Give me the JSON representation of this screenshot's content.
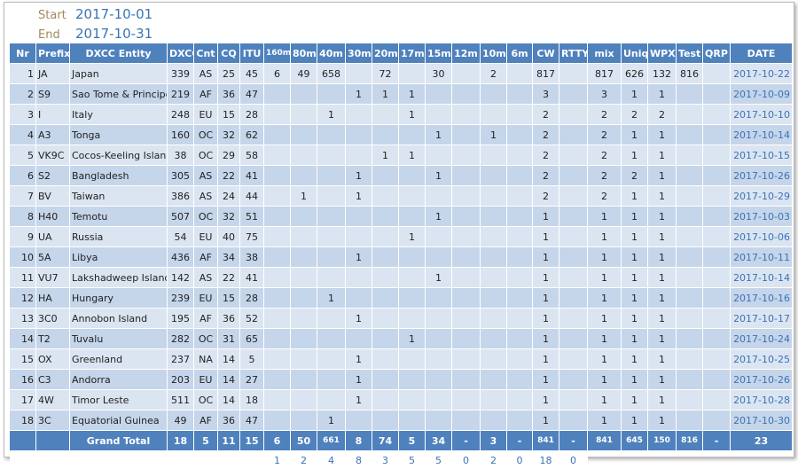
{
  "period": {
    "start_label": "Start",
    "start": "2017-10-01",
    "end_label": "End",
    "end": "2017-10-31"
  },
  "table": {
    "columns": [
      "Nr",
      "Prefix",
      "DXCC Entity",
      "DXCC",
      "Cnt",
      "CQ",
      "ITU",
      "160m",
      "80m",
      "40m",
      "30m",
      "20m",
      "17m",
      "15m",
      "12m",
      "10m",
      "6m",
      "CW",
      "RTTY",
      "mix",
      "Uniq",
      "WPX",
      "Test",
      "QRP",
      "DATE"
    ],
    "rows": [
      [
        1,
        "JA",
        "Japan",
        339,
        "AS",
        25,
        45,
        6,
        49,
        658,
        null,
        72,
        null,
        30,
        null,
        2,
        null,
        817,
        null,
        817,
        626,
        132,
        816,
        null,
        "2017-10-22"
      ],
      [
        2,
        "S9",
        "Sao Tome & Principe",
        219,
        "AF",
        36,
        47,
        null,
        null,
        null,
        1,
        1,
        1,
        null,
        null,
        null,
        null,
        3,
        null,
        3,
        1,
        1,
        null,
        null,
        "2017-10-09"
      ],
      [
        3,
        "I",
        "Italy",
        248,
        "EU",
        15,
        28,
        null,
        null,
        1,
        null,
        null,
        1,
        null,
        null,
        null,
        null,
        2,
        null,
        2,
        2,
        2,
        null,
        null,
        "2017-10-10"
      ],
      [
        4,
        "A3",
        "Tonga",
        160,
        "OC",
        32,
        62,
        null,
        null,
        null,
        null,
        null,
        null,
        1,
        null,
        1,
        null,
        2,
        null,
        2,
        1,
        1,
        null,
        null,
        "2017-10-14"
      ],
      [
        5,
        "VK9C",
        "Cocos-Keeling Islands",
        38,
        "OC",
        29,
        58,
        null,
        null,
        null,
        null,
        1,
        1,
        null,
        null,
        null,
        null,
        2,
        null,
        2,
        1,
        1,
        null,
        null,
        "2017-10-15"
      ],
      [
        6,
        "S2",
        "Bangladesh",
        305,
        "AS",
        22,
        41,
        null,
        null,
        null,
        1,
        null,
        null,
        1,
        null,
        null,
        null,
        2,
        null,
        2,
        2,
        1,
        null,
        null,
        "2017-10-26"
      ],
      [
        7,
        "BV",
        "Taiwan",
        386,
        "AS",
        24,
        44,
        null,
        1,
        null,
        1,
        null,
        null,
        null,
        null,
        null,
        null,
        2,
        null,
        2,
        1,
        1,
        null,
        null,
        "2017-10-29"
      ],
      [
        8,
        "H40",
        "Temotu",
        507,
        "OC",
        32,
        51,
        null,
        null,
        null,
        null,
        null,
        null,
        1,
        null,
        null,
        null,
        1,
        null,
        1,
        1,
        1,
        null,
        null,
        "2017-10-03"
      ],
      [
        9,
        "UA",
        "Russia",
        54,
        "EU",
        40,
        75,
        null,
        null,
        null,
        null,
        null,
        1,
        null,
        null,
        null,
        null,
        1,
        null,
        1,
        1,
        1,
        null,
        null,
        "2017-10-06"
      ],
      [
        10,
        "5A",
        "Libya",
        436,
        "AF",
        34,
        38,
        null,
        null,
        null,
        1,
        null,
        null,
        null,
        null,
        null,
        null,
        1,
        null,
        1,
        1,
        1,
        null,
        null,
        "2017-10-11"
      ],
      [
        11,
        "VU7",
        "Lakshadweep Islands",
        142,
        "AS",
        22,
        41,
        null,
        null,
        null,
        null,
        null,
        null,
        1,
        null,
        null,
        null,
        1,
        null,
        1,
        1,
        1,
        null,
        null,
        "2017-10-14"
      ],
      [
        12,
        "HA",
        "Hungary",
        239,
        "EU",
        15,
        28,
        null,
        null,
        1,
        null,
        null,
        null,
        null,
        null,
        null,
        null,
        1,
        null,
        1,
        1,
        1,
        null,
        null,
        "2017-10-16"
      ],
      [
        13,
        "3C0",
        "Annobon Island",
        195,
        "AF",
        36,
        52,
        null,
        null,
        null,
        1,
        null,
        null,
        null,
        null,
        null,
        null,
        1,
        null,
        1,
        1,
        1,
        null,
        null,
        "2017-10-17"
      ],
      [
        14,
        "T2",
        "Tuvalu",
        282,
        "OC",
        31,
        65,
        null,
        null,
        null,
        null,
        null,
        1,
        null,
        null,
        null,
        null,
        1,
        null,
        1,
        1,
        1,
        null,
        null,
        "2017-10-24"
      ],
      [
        15,
        "OX",
        "Greenland",
        237,
        "NA",
        14,
        5,
        null,
        null,
        null,
        1,
        null,
        null,
        null,
        null,
        null,
        null,
        1,
        null,
        1,
        1,
        1,
        null,
        null,
        "2017-10-25"
      ],
      [
        16,
        "C3",
        "Andorra",
        203,
        "EU",
        14,
        27,
        null,
        null,
        null,
        1,
        null,
        null,
        null,
        null,
        null,
        null,
        1,
        null,
        1,
        1,
        1,
        null,
        null,
        "2017-10-26"
      ],
      [
        17,
        "4W",
        "Timor Leste",
        511,
        "OC",
        14,
        18,
        null,
        null,
        null,
        1,
        null,
        null,
        null,
        null,
        null,
        null,
        1,
        null,
        1,
        1,
        1,
        null,
        null,
        "2017-10-28"
      ],
      [
        18,
        "3C",
        "Equatorial Guinea",
        49,
        "AF",
        36,
        47,
        null,
        null,
        1,
        null,
        null,
        null,
        null,
        null,
        null,
        null,
        1,
        null,
        1,
        1,
        1,
        null,
        null,
        "2017-10-30"
      ]
    ],
    "total": [
      null,
      null,
      "Grand Total",
      18,
      5,
      11,
      15,
      6,
      50,
      661,
      8,
      74,
      5,
      34,
      "-",
      3,
      "-",
      841,
      "-",
      841,
      645,
      150,
      816,
      "-",
      23
    ],
    "band_counts": [
      1,
      2,
      4,
      8,
      3,
      5,
      5,
      0,
      2,
      0,
      18,
      0
    ]
  }
}
